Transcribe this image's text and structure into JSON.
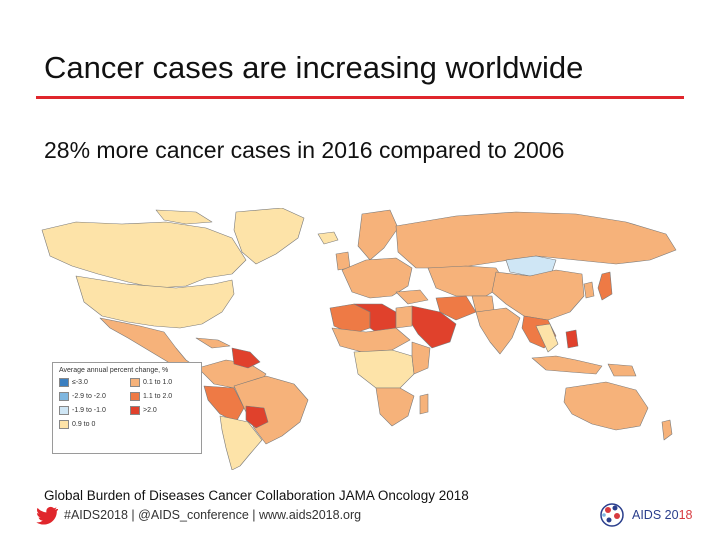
{
  "slide": {
    "title": "Cancer cases are increasing worldwide",
    "subtitle": "28% more cancer cases in 2016 compared to 2006",
    "citation": "Global Burden of Diseases Cancer Collaboration JAMA Oncology 2018",
    "footer": "#AIDS2018 | @AIDS_conference | www.aids2018.org",
    "logo_text_main": "AIDS 20",
    "logo_text_accent": "18",
    "accent_color": "#e0262c"
  },
  "map": {
    "legend_title": "Average annual percent change, %",
    "legend_items": [
      {
        "label": "≤-3.0",
        "color": "#3b7fc0"
      },
      {
        "label": "0.1 to 1.0",
        "color": "#f6b27a"
      },
      {
        "label": "-2.9 to -2.0",
        "color": "#7fb7e0"
      },
      {
        "label": "1.1 to 2.0",
        "color": "#ee7a45"
      },
      {
        "label": "-1.9 to -1.0",
        "color": "#cfe6f5"
      },
      {
        "label": ">2.0",
        "color": "#e0412c"
      },
      {
        "label": "0.9 to 0",
        "color": "#fde3a8"
      }
    ]
  }
}
